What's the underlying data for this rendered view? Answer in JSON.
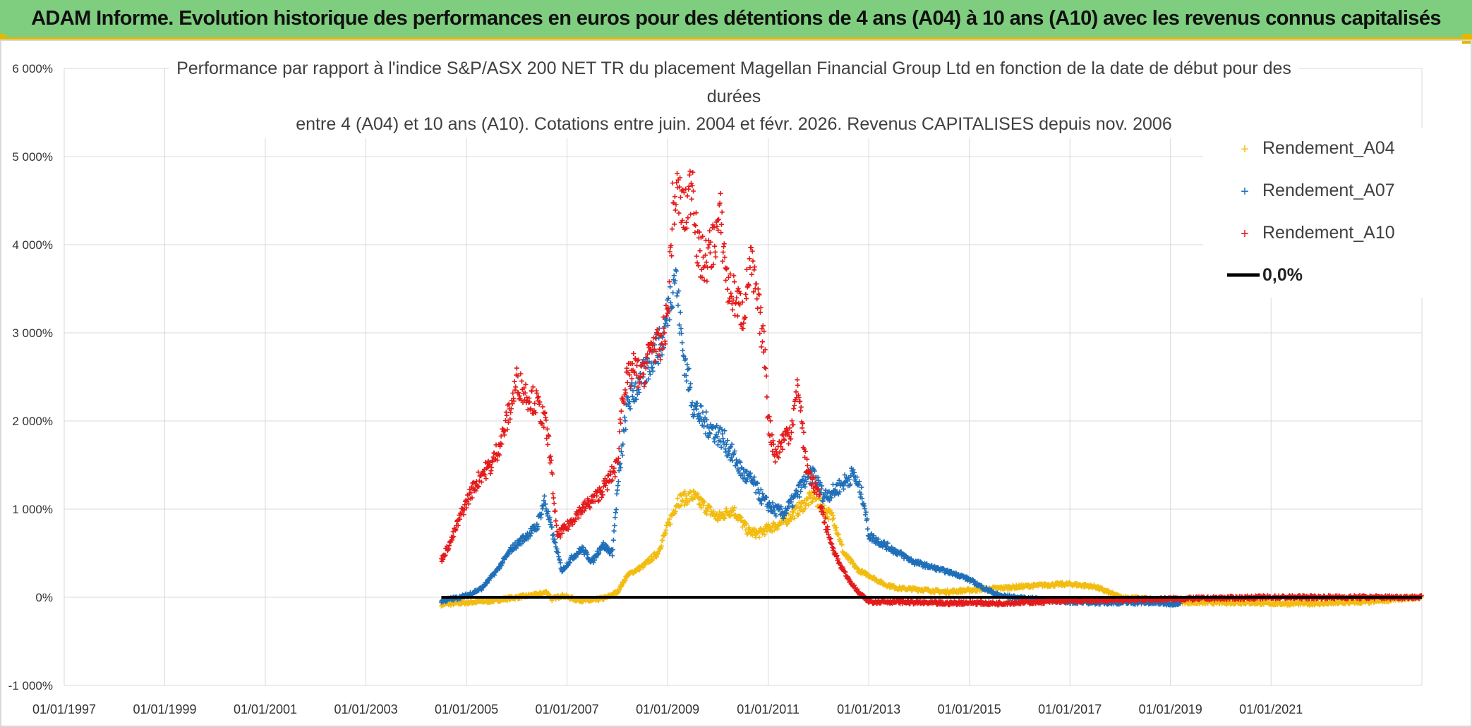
{
  "banner": {
    "title": "ADAM Informe. Evolution historique des performances en euros pour des détentions de 4 ans (A04) à 10 ans (A10) avec les revenus connus capitalisés"
  },
  "colors": {
    "banner_bg": "#7fce7f",
    "accent_border": "#e5b800",
    "A04": "#f2bc10",
    "A07": "#1f6fb8",
    "A10": "#e41a1a",
    "zero": "#000000"
  },
  "chart_data": {
    "type": "scatter",
    "title_lines": [
      "Performance par rapport à l'indice S&P/ASX 200 NET TR  du placement Magellan Financial Group Ltd en fonction de la date de début pour des",
      "durées",
      "entre 4 (A04) et 10 ans (A10). Cotations entre juin. 2004 et févr. 2026. Revenus CAPITALISES depuis nov. 2006"
    ],
    "xlabel": "",
    "ylabel": "",
    "x_range": [
      1997.0,
      2024.0
    ],
    "ylim": [
      -1000,
      6000
    ],
    "y_ticks": [
      -1000,
      0,
      1000,
      2000,
      3000,
      4000,
      5000,
      6000
    ],
    "y_tick_labels": [
      "-1 000%",
      "0%",
      "1 000%",
      "2 000%",
      "3 000%",
      "4 000%",
      "5 000%",
      "6 000%"
    ],
    "x_ticks": [
      1997,
      1999,
      2001,
      2003,
      2005,
      2007,
      2009,
      2011,
      2013,
      2015,
      2017,
      2019,
      2021
    ],
    "x_tick_labels": [
      "01/01/1997",
      "01/01/1999",
      "01/01/2001",
      "01/01/2003",
      "01/01/2005",
      "01/01/2007",
      "01/01/2009",
      "01/01/2011",
      "01/01/2013",
      "01/01/2015",
      "01/01/2017",
      "01/01/2019",
      "01/01/2021"
    ],
    "grid": true,
    "legend_position": "top-right",
    "legend": [
      {
        "key": "A04",
        "label": "Rendement_A04",
        "marker": "plus"
      },
      {
        "key": "A07",
        "label": "Rendement_A07",
        "marker": "plus"
      },
      {
        "key": "A10",
        "label": "Rendement_A10",
        "marker": "plus"
      },
      {
        "key": "zero",
        "label": "0,0%",
        "marker": "line"
      }
    ],
    "series": [
      {
        "name": "Rendement_A04",
        "key": "A04",
        "x": [
          2004.5,
          2005.0,
          2005.5,
          2006.0,
          2006.4,
          2006.6,
          2006.7,
          2006.9,
          2007.2,
          2007.5,
          2007.8,
          2008.0,
          2008.2,
          2008.5,
          2008.8,
          2009.0,
          2009.2,
          2009.5,
          2009.8,
          2010.0,
          2010.3,
          2010.6,
          2010.8,
          2011.0,
          2011.3,
          2011.6,
          2011.9,
          2012.1,
          2012.3,
          2012.5,
          2012.8,
          2013.0,
          2013.3,
          2013.6,
          2014.0,
          2014.5,
          2015.0,
          2015.5,
          2016.0,
          2016.5,
          2017.0,
          2017.5,
          2018.0,
          2018.5,
          2019.0,
          2019.5,
          2020.0,
          2020.5,
          2021.0,
          2021.5,
          2022.0,
          2022.5,
          2023.0,
          2023.5,
          2024.0
        ],
        "y": [
          -80,
          -60,
          -40,
          0,
          30,
          60,
          -20,
          20,
          -30,
          -40,
          0,
          60,
          250,
          350,
          500,
          800,
          1100,
          1150,
          1000,
          900,
          1000,
          750,
          720,
          780,
          850,
          1000,
          1150,
          1000,
          900,
          500,
          300,
          250,
          150,
          100,
          90,
          60,
          80,
          100,
          120,
          140,
          150,
          120,
          0,
          -20,
          -50,
          -60,
          -60,
          -60,
          -70,
          -70,
          -70,
          -60,
          -50,
          -20,
          0
        ]
      },
      {
        "name": "Rendement_A07",
        "key": "A07",
        "x": [
          2004.5,
          2004.8,
          2005.0,
          2005.3,
          2005.6,
          2005.9,
          2006.2,
          2006.4,
          2006.55,
          2006.7,
          2006.9,
          2007.1,
          2007.3,
          2007.5,
          2007.7,
          2007.9,
          2008.0,
          2008.2,
          2008.4,
          2008.6,
          2008.75,
          2008.9,
          2009.05,
          2009.15,
          2009.3,
          2009.5,
          2009.7,
          2009.9,
          2010.1,
          2010.3,
          2010.5,
          2010.7,
          2010.9,
          2011.1,
          2011.3,
          2011.5,
          2011.7,
          2011.9,
          2012.1,
          2012.3,
          2012.5,
          2012.7,
          2012.9,
          2013.0,
          2013.3,
          2013.6,
          2013.9,
          2014.2,
          2014.5,
          2014.8,
          2015.0,
          2015.3,
          2015.6,
          2016.0,
          2016.5,
          2017.0,
          2017.5,
          2018.0,
          2018.5,
          2019.0,
          2019.2
        ],
        "y": [
          -40,
          -10,
          20,
          100,
          300,
          550,
          700,
          800,
          1100,
          750,
          300,
          450,
          550,
          400,
          600,
          500,
          1200,
          2200,
          2400,
          2600,
          2800,
          2900,
          3400,
          3700,
          2800,
          2200,
          2000,
          1900,
          1800,
          1600,
          1400,
          1300,
          1100,
          1000,
          950,
          1100,
          1300,
          1400,
          1150,
          1200,
          1300,
          1400,
          1100,
          700,
          600,
          500,
          400,
          350,
          300,
          250,
          200,
          100,
          20,
          -10,
          -30,
          -50,
          -60,
          -60,
          -60,
          -70,
          -70
        ]
      },
      {
        "name": "Rendement_A10",
        "key": "A10",
        "x": [
          2004.5,
          2004.7,
          2004.9,
          2005.1,
          2005.3,
          2005.5,
          2005.7,
          2005.9,
          2006.0,
          2006.2,
          2006.4,
          2006.55,
          2006.65,
          2006.8,
          2007.0,
          2007.2,
          2007.4,
          2007.6,
          2007.8,
          2008.0,
          2008.1,
          2008.3,
          2008.5,
          2008.7,
          2008.85,
          2009.0,
          2009.1,
          2009.2,
          2009.35,
          2009.5,
          2009.6,
          2009.75,
          2009.9,
          2010.05,
          2010.2,
          2010.35,
          2010.5,
          2010.65,
          2010.8,
          2010.95,
          2011.0,
          2011.15,
          2011.3,
          2011.45,
          2011.6,
          2011.75,
          2011.9,
          2012.0,
          2012.2,
          2012.4,
          2012.6,
          2012.8,
          2013.0,
          2013.5,
          2014.0,
          2014.5,
          2015.0,
          2015.5,
          2016.0,
          2016.5,
          2017.0,
          2018.0,
          2019.0,
          2020.0,
          2021.0,
          2022.0,
          2023.0,
          2024.0
        ],
        "y": [
          420,
          650,
          950,
          1200,
          1400,
          1500,
          1800,
          2200,
          2450,
          2300,
          2200,
          2000,
          1700,
          700,
          800,
          950,
          1050,
          1150,
          1300,
          1500,
          2300,
          2600,
          2500,
          2900,
          2800,
          3200,
          4400,
          4600,
          4300,
          4800,
          3900,
          3800,
          4000,
          4300,
          3500,
          3400,
          3200,
          3800,
          3300,
          2700,
          2000,
          1600,
          1800,
          1900,
          2400,
          1500,
          1300,
          1150,
          700,
          400,
          200,
          50,
          -50,
          -50,
          -60,
          -70,
          -60,
          -70,
          -60,
          -50,
          -40,
          -30,
          -20,
          -10,
          0,
          0,
          0,
          0
        ]
      }
    ],
    "zero_line": {
      "label": "0,0%",
      "x_start": 2004.5,
      "x_end": 2024.0,
      "y": 0
    }
  }
}
